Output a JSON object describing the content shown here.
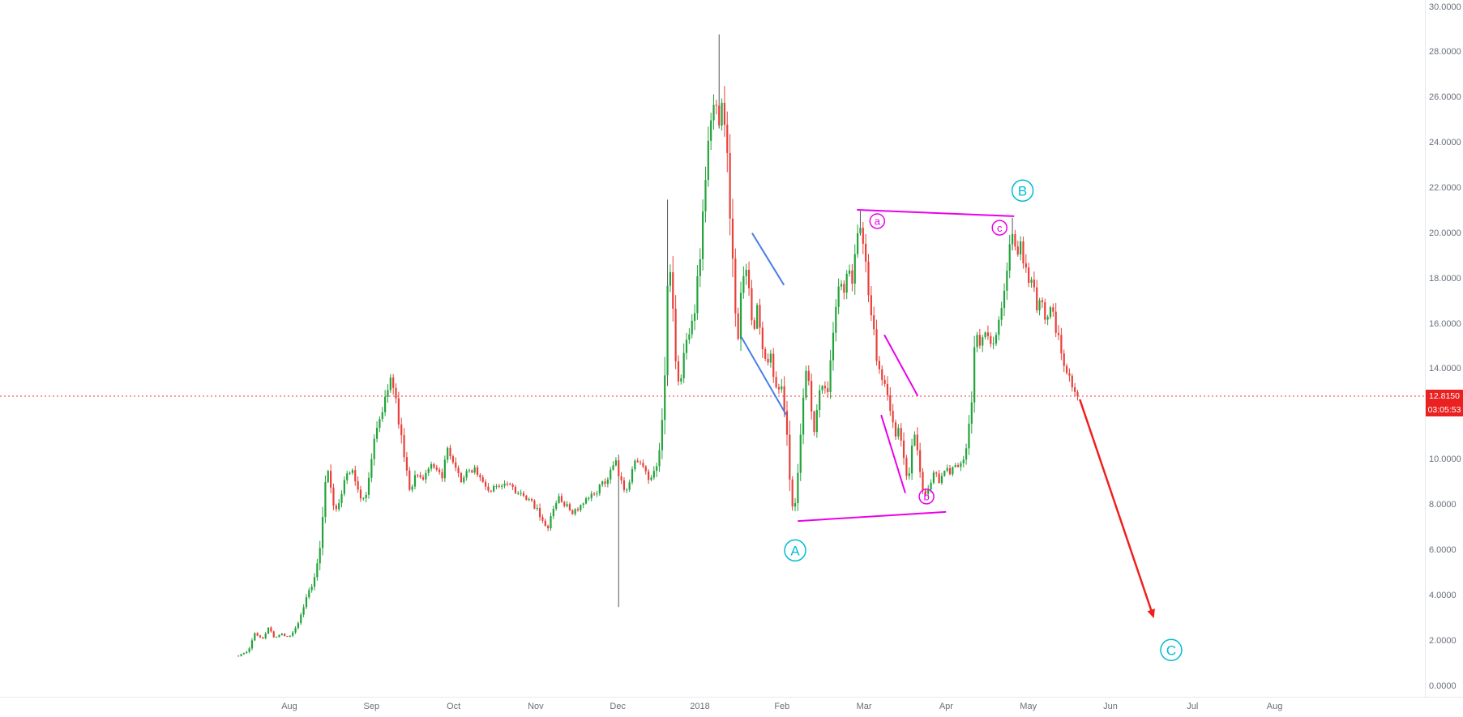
{
  "chart_data": {
    "type": "candlestick",
    "grid": "off",
    "legend": "none",
    "last_price": 12.815,
    "last_price_label": "12.8150",
    "countdown_label": "03:05:53",
    "price_line": {
      "value": 12.815,
      "style": "dotted"
    },
    "y_axis": {
      "min": 0,
      "max": 30,
      "step": 2,
      "ticks": [
        "0.0000",
        "2.0000",
        "4.0000",
        "6.0000",
        "8.0000",
        "10.0000",
        "12.0000",
        "14.0000",
        "16.0000",
        "18.0000",
        "20.0000",
        "22.0000",
        "24.0000",
        "26.0000",
        "28.0000",
        "30.0000"
      ]
    },
    "x_axis": {
      "ticks": [
        {
          "label": "Aug",
          "t": 0
        },
        {
          "label": "Sep",
          "t": 1
        },
        {
          "label": "Oct",
          "t": 2
        },
        {
          "label": "Nov",
          "t": 3
        },
        {
          "label": "Dec",
          "t": 4
        },
        {
          "label": "2018",
          "t": 5
        },
        {
          "label": "Feb",
          "t": 6
        },
        {
          "label": "Mar",
          "t": 7
        },
        {
          "label": "Apr",
          "t": 8
        },
        {
          "label": "May",
          "t": 9
        },
        {
          "label": "Jun",
          "t": 10
        },
        {
          "label": "Jul",
          "t": 11
        },
        {
          "label": "Aug",
          "t": 12
        }
      ]
    },
    "candle_count": 310,
    "t_start": -0.62,
    "t_end": 9.6,
    "waypoints": [
      [
        -0.62,
        1.35
      ],
      [
        -0.5,
        1.55
      ],
      [
        -0.42,
        2.35
      ],
      [
        -0.33,
        2.1
      ],
      [
        -0.25,
        2.6
      ],
      [
        -0.18,
        2.15
      ],
      [
        -0.1,
        2.3
      ],
      [
        0,
        2.2
      ],
      [
        0.08,
        2.6
      ],
      [
        0.15,
        3.2
      ],
      [
        0.22,
        4.05
      ],
      [
        0.3,
        4.6
      ],
      [
        0.38,
        6.3
      ],
      [
        0.45,
        9.7
      ],
      [
        0.5,
        8.9
      ],
      [
        0.55,
        7.6
      ],
      [
        0.62,
        8.4
      ],
      [
        0.68,
        9.2
      ],
      [
        0.75,
        9.6
      ],
      [
        0.82,
        8.9
      ],
      [
        0.88,
        8.2
      ],
      [
        0.95,
        8.7
      ],
      [
        1.02,
        10.5
      ],
      [
        1.08,
        11.8
      ],
      [
        1.15,
        12.3
      ],
      [
        1.22,
        13.7
      ],
      [
        1.28,
        12.9
      ],
      [
        1.35,
        11.4
      ],
      [
        1.42,
        9.6
      ],
      [
        1.47,
        8.6
      ],
      [
        1.55,
        9.5
      ],
      [
        1.62,
        9.1
      ],
      [
        1.7,
        9.7
      ],
      [
        1.78,
        9.5
      ],
      [
        1.85,
        9.2
      ],
      [
        1.93,
        10.4
      ],
      [
        2,
        9.7
      ],
      [
        2.08,
        9.1
      ],
      [
        2.15,
        9.3
      ],
      [
        2.25,
        9.7
      ],
      [
        2.35,
        9.0
      ],
      [
        2.45,
        8.6
      ],
      [
        2.55,
        8.9
      ],
      [
        2.65,
        9.1
      ],
      [
        2.75,
        8.7
      ],
      [
        2.85,
        8.3
      ],
      [
        2.95,
        8.1
      ],
      [
        3.02,
        7.9
      ],
      [
        3.08,
        7.3
      ],
      [
        3.13,
        6.85
      ],
      [
        3.2,
        7.6
      ],
      [
        3.28,
        8.4
      ],
      [
        3.35,
        8.0
      ],
      [
        3.45,
        7.7
      ],
      [
        3.55,
        7.9
      ],
      [
        3.65,
        8.3
      ],
      [
        3.75,
        8.7
      ],
      [
        3.85,
        9.0
      ],
      [
        3.93,
        9.6
      ],
      [
        3.97,
        9.9
      ],
      [
        4.03,
        9.0
      ],
      [
        4.1,
        8.7
      ],
      [
        4.17,
        9.5
      ],
      [
        4.24,
        10.1
      ],
      [
        4.32,
        9.5
      ],
      [
        4.4,
        9.0
      ],
      [
        4.47,
        9.6
      ],
      [
        4.53,
        11.0
      ],
      [
        4.58,
        14.5
      ],
      [
        4.62,
        19.0
      ],
      [
        4.66,
        17.0
      ],
      [
        4.71,
        14.3
      ],
      [
        4.76,
        13.2
      ],
      [
        4.81,
        14.8
      ],
      [
        4.87,
        15.8
      ],
      [
        4.93,
        16.5
      ],
      [
        4.99,
        18.5
      ],
      [
        5.04,
        21.0
      ],
      [
        5.09,
        23.5
      ],
      [
        5.14,
        25.0
      ],
      [
        5.19,
        26.0
      ],
      [
        5.23,
        25.0
      ],
      [
        5.27,
        26.2
      ],
      [
        5.31,
        24.8
      ],
      [
        5.36,
        21.5
      ],
      [
        5.41,
        17.8
      ],
      [
        5.46,
        15.2
      ],
      [
        5.51,
        17.6
      ],
      [
        5.55,
        19.2
      ],
      [
        5.6,
        17.2
      ],
      [
        5.65,
        15.6
      ],
      [
        5.7,
        16.8
      ],
      [
        5.75,
        15.2
      ],
      [
        5.8,
        14.2
      ],
      [
        5.85,
        14.8
      ],
      [
        5.9,
        13.6
      ],
      [
        5.95,
        13.3
      ],
      [
        6.0,
        13.0
      ],
      [
        6.05,
        11.5
      ],
      [
        6.1,
        8.8
      ],
      [
        6.14,
        7.45
      ],
      [
        6.2,
        9.8
      ],
      [
        6.25,
        12.3
      ],
      [
        6.3,
        14.2
      ],
      [
        6.35,
        12.6
      ],
      [
        6.4,
        11.2
      ],
      [
        6.45,
        12.9
      ],
      [
        6.5,
        13.6
      ],
      [
        6.55,
        12.8
      ],
      [
        6.6,
        14.6
      ],
      [
        6.65,
        16.4
      ],
      [
        6.7,
        17.8
      ],
      [
        6.75,
        17.1
      ],
      [
        6.8,
        18.4
      ],
      [
        6.85,
        17.6
      ],
      [
        6.9,
        19.6
      ],
      [
        6.95,
        20.6
      ],
      [
        7.0,
        19.2
      ],
      [
        7.05,
        17.6
      ],
      [
        7.1,
        16.2
      ],
      [
        7.16,
        14.2
      ],
      [
        7.22,
        13.7
      ],
      [
        7.27,
        13.4
      ],
      [
        7.33,
        12.0
      ],
      [
        7.38,
        10.9
      ],
      [
        7.43,
        11.6
      ],
      [
        7.48,
        10.0
      ],
      [
        7.53,
        9.0
      ],
      [
        7.58,
        10.4
      ],
      [
        7.63,
        11.1
      ],
      [
        7.68,
        9.4
      ],
      [
        7.73,
        8.4
      ],
      [
        7.79,
        8.7
      ],
      [
        7.85,
        9.5
      ],
      [
        7.91,
        9.1
      ],
      [
        7.97,
        9.7
      ],
      [
        8.03,
        9.4
      ],
      [
        8.1,
        9.8
      ],
      [
        8.17,
        9.6
      ],
      [
        8.24,
        10.4
      ],
      [
        8.3,
        12.0
      ],
      [
        8.36,
        15.8
      ],
      [
        8.42,
        14.9
      ],
      [
        8.48,
        15.7
      ],
      [
        8.54,
        14.9
      ],
      [
        8.6,
        15.6
      ],
      [
        8.66,
        16.4
      ],
      [
        8.72,
        17.6
      ],
      [
        8.77,
        19.4
      ],
      [
        8.81,
        20.2
      ],
      [
        8.86,
        18.9
      ],
      [
        8.91,
        19.4
      ],
      [
        8.96,
        18.4
      ],
      [
        9.01,
        17.4
      ],
      [
        9.06,
        17.9
      ],
      [
        9.11,
        16.6
      ],
      [
        9.17,
        16.9
      ],
      [
        9.22,
        16.3
      ],
      [
        9.27,
        17.0
      ],
      [
        9.32,
        16.2
      ],
      [
        9.38,
        15.0
      ],
      [
        9.44,
        14.2
      ],
      [
        9.5,
        13.8
      ],
      [
        9.55,
        13.3
      ],
      [
        9.6,
        12.82
      ]
    ],
    "special_wicks": [
      {
        "t": 4.0,
        "low": 3.5
      },
      {
        "t": 4.62,
        "high": 21.5
      },
      {
        "t": 5.22,
        "high": 28.8
      },
      {
        "t": 6.95,
        "high": 21.0
      },
      {
        "t": 8.81,
        "high": 20.7
      }
    ],
    "annotations": {
      "wave_labels": [
        {
          "label": "A",
          "t": 6.16,
          "price": 6.0,
          "palette": "cyan",
          "size": "large"
        },
        {
          "label": "B",
          "t": 8.93,
          "price": 21.9,
          "palette": "cyan",
          "size": "large"
        },
        {
          "label": "C",
          "t": 10.74,
          "price": 1.6,
          "palette": "cyan",
          "size": "large"
        },
        {
          "label": "a",
          "t": 7.16,
          "price": 20.55,
          "palette": "magenta",
          "size": "small"
        },
        {
          "label": "b",
          "t": 7.76,
          "price": 8.38,
          "palette": "magenta",
          "size": "small"
        },
        {
          "label": "c",
          "t": 8.65,
          "price": 20.26,
          "palette": "magenta",
          "size": "small"
        }
      ],
      "trend_lines": [
        {
          "t1": 6.92,
          "p1": 21.05,
          "t2": 8.82,
          "p2": 20.77,
          "palette": "magenta"
        },
        {
          "t1": 6.2,
          "p1": 7.3,
          "t2": 7.99,
          "p2": 7.7,
          "palette": "magenta"
        },
        {
          "t1": 7.25,
          "p1": 15.5,
          "t2": 7.65,
          "p2": 12.85,
          "palette": "magenta"
        },
        {
          "t1": 7.21,
          "p1": 11.96,
          "t2": 7.5,
          "p2": 8.56,
          "palette": "magenta"
        },
        {
          "t1": 5.64,
          "p1": 20.0,
          "t2": 6.02,
          "p2": 17.75,
          "palette": "blue"
        },
        {
          "t1": 5.51,
          "p1": 15.4,
          "t2": 6.05,
          "p2": 12.0,
          "palette": "blue"
        }
      ],
      "arrow": {
        "t1": 9.63,
        "p1": 12.64,
        "t2": 10.53,
        "p2": 3.0,
        "palette": "red"
      }
    },
    "colors": {
      "up_candle": "#23a33b",
      "down_candle": "#e8403a",
      "special_wick": "#555555",
      "price_line": "#f23645",
      "price_label_bg": "#eb2020",
      "magenta": "#ea00ea",
      "cyan": "#00bcd4",
      "blue": "#4a7fe8",
      "red": "#f01f1f",
      "axis_text": "#696f7a"
    }
  }
}
